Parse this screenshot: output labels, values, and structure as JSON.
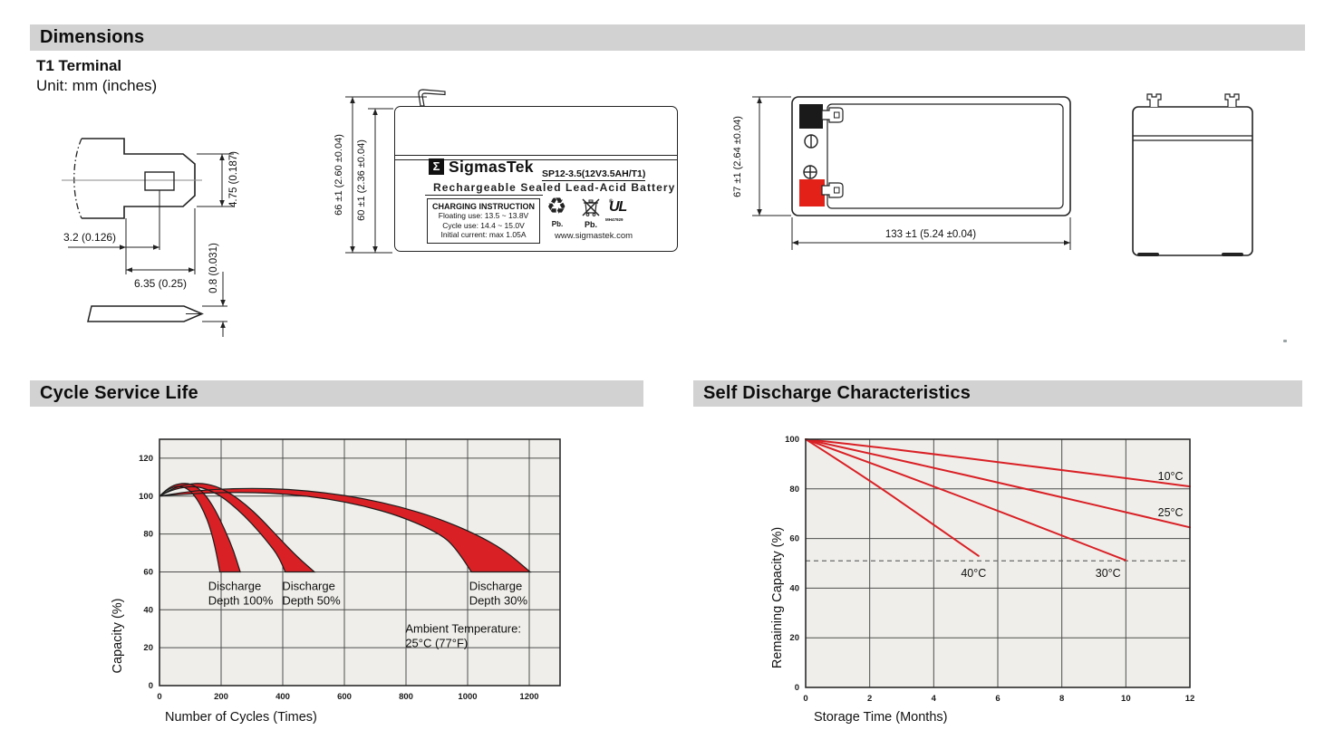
{
  "header": {
    "dimensions_title": "Dimensions",
    "cycle_title": "Cycle Service Life",
    "self_discharge_title": "Self Discharge Characteristics"
  },
  "terminal_section": {
    "subtitle": "T1 Terminal",
    "unit_note": "Unit: mm (inches)",
    "dims": {
      "height": "4.75 (0.187)",
      "offset": "3.2 (0.126)",
      "width": "6.35 (0.25)",
      "thickness": "0.8 (0.031)"
    }
  },
  "front_view": {
    "dim_total": "66 ±1 (2.60 ±0.04)",
    "dim_body": "60 ±1 (2.36 ±0.04)",
    "label": {
      "sigma": "Σ",
      "brand": "SigmasTek",
      "model": "SP12-3.5(12V3.5AH/T1)",
      "tagline": "Rechargeable Sealed Lead-Acid Battery",
      "charging_title": "CHARGING INSTRUCTION",
      "charging_lines": [
        "Floating use: 13.5 ~ 13.8V",
        "Cycle use: 14.4 ~ 15.0V",
        "Initial current: max 1.05A"
      ],
      "pb_recycle": "Pb.",
      "pb_bin": "Pb.",
      "ul_mark": "UL",
      "ul_reg": "®",
      "ul_code": "MH47929",
      "website": "www.sigmastek.com"
    }
  },
  "top_view": {
    "dim_height": "67 ±1 (2.64 ±0.04)",
    "dim_width": "133 ±1 (5.24 ±0.04)"
  },
  "chart_data": [
    {
      "type": "area",
      "title": "Cycle Service Life",
      "xlabel": "Number of Cycles (Times)",
      "ylabel": "Capacity (%)",
      "xlim": [
        0,
        1300
      ],
      "ylim": [
        0,
        130
      ],
      "xticks": [
        0,
        200,
        400,
        600,
        800,
        1000,
        1200
      ],
      "yticks": [
        0,
        20,
        40,
        60,
        80,
        100,
        120
      ],
      "grid": true,
      "legend_position": "none",
      "plot_bg": "#efeeea",
      "band_color": "#d92025",
      "outline_color": "#1c1c1c",
      "bands": [
        {
          "name": "Discharge Depth 100%",
          "upper": [
            [
              0,
              100
            ],
            [
              25,
              104
            ],
            [
              55,
              106.3
            ],
            [
              90,
              107
            ],
            [
              120,
              105
            ],
            [
              150,
              100.5
            ],
            [
              180,
              93
            ],
            [
              210,
              83
            ],
            [
              240,
              71.5
            ],
            [
              262,
              60
            ]
          ],
          "lower": [
            [
              0,
              100
            ],
            [
              20,
              102.8
            ],
            [
              45,
              104.8
            ],
            [
              70,
              105.3
            ],
            [
              95,
              103.5
            ],
            [
              120,
              99
            ],
            [
              145,
              91.5
            ],
            [
              165,
              83
            ],
            [
              185,
              70
            ],
            [
              196,
              60
            ]
          ]
        },
        {
          "name": "Discharge Depth 50%",
          "upper": [
            [
              0,
              100
            ],
            [
              35,
              103.5
            ],
            [
              80,
              106
            ],
            [
              130,
              107
            ],
            [
              180,
              105.5
            ],
            [
              230,
              101.5
            ],
            [
              280,
              95.5
            ],
            [
              330,
              88
            ],
            [
              390,
              77.5
            ],
            [
              450,
              67.5
            ],
            [
              503,
              60
            ]
          ],
          "lower": [
            [
              0,
              100
            ],
            [
              30,
              102.5
            ],
            [
              70,
              104.5
            ],
            [
              110,
              105.2
            ],
            [
              150,
              104
            ],
            [
              200,
              100
            ],
            [
              250,
              93.5
            ],
            [
              300,
              85.5
            ],
            [
              350,
              76
            ],
            [
              390,
              67.5
            ],
            [
              408,
              60
            ]
          ]
        },
        {
          "name": "Discharge Depth 30%",
          "upper": [
            [
              0,
              100
            ],
            [
              80,
              102.2
            ],
            [
              180,
              103.6
            ],
            [
              300,
              104.2
            ],
            [
              420,
              103.6
            ],
            [
              540,
              101.8
            ],
            [
              660,
              98.8
            ],
            [
              780,
              94.5
            ],
            [
              900,
              88.5
            ],
            [
              1020,
              80.5
            ],
            [
              1120,
              71.5
            ],
            [
              1203,
              60
            ]
          ],
          "lower": [
            [
              0,
              100
            ],
            [
              80,
              101
            ],
            [
              180,
              101.8
            ],
            [
              300,
              102
            ],
            [
              420,
              101
            ],
            [
              540,
              98.8
            ],
            [
              660,
              95
            ],
            [
              780,
              89.5
            ],
            [
              900,
              81
            ],
            [
              960,
              73.5
            ],
            [
              1012,
              60
            ]
          ]
        }
      ],
      "annotations": [
        {
          "lines": [
            "Discharge",
            "Depth 100%"
          ],
          "x": 158,
          "y": 50.5
        },
        {
          "lines": [
            "Discharge",
            "Depth 50%"
          ],
          "x": 398,
          "y": 50.5
        },
        {
          "lines": [
            "Discharge",
            "Depth 30%"
          ],
          "x": 1005,
          "y": 50.5
        },
        {
          "lines": [
            "Ambient Temperature:",
            "25°C (77°F)"
          ],
          "x": 798,
          "y": 28
        }
      ]
    },
    {
      "type": "line",
      "title": "Self Discharge Characteristics",
      "xlabel": "Storage Time (Months)",
      "ylabel": "Remaining Capacity (%)",
      "xlim": [
        0,
        12
      ],
      "ylim": [
        0,
        100
      ],
      "xticks": [
        0,
        2,
        4,
        6,
        8,
        10,
        12
      ],
      "yticks": [
        0,
        20,
        40,
        60,
        80,
        100
      ],
      "grid": true,
      "legend_position": "inline-labels",
      "plot_bg": "#efeeea",
      "line_color": "#d92025",
      "series": [
        {
          "name": "10°C",
          "points": [
            [
              0,
              100
            ],
            [
              2,
              97.2
            ],
            [
              4,
              94
            ],
            [
              6,
              90.8
            ],
            [
              8,
              87.6
            ],
            [
              10,
              84.3
            ],
            [
              12,
              81
            ]
          ],
          "label_at": [
            11.0,
            83.5
          ]
        },
        {
          "name": "25°C",
          "points": [
            [
              0,
              100
            ],
            [
              2,
              94.3
            ],
            [
              4,
              88.5
            ],
            [
              6,
              82.6
            ],
            [
              8,
              76.6
            ],
            [
              10,
              70.6
            ],
            [
              12,
              64.5
            ]
          ],
          "label_at": [
            11.0,
            69
          ]
        },
        {
          "name": "30°C",
          "points": [
            [
              0,
              100
            ],
            [
              2,
              90.6
            ],
            [
              4,
              81
            ],
            [
              6,
              71.2
            ],
            [
              8,
              61.2
            ],
            [
              10,
              51.2
            ]
          ],
          "label_at": [
            9.05,
            44.5
          ]
        },
        {
          "name": "40°C",
          "points": [
            [
              0,
              100
            ],
            [
              2,
              83.5
            ],
            [
              4,
              65.5
            ],
            [
              5.4,
              53
            ]
          ],
          "label_at": [
            4.85,
            44.5
          ]
        }
      ],
      "threshold": {
        "y": 51,
        "color": "#6a6a6a",
        "style": "dashed"
      }
    }
  ]
}
